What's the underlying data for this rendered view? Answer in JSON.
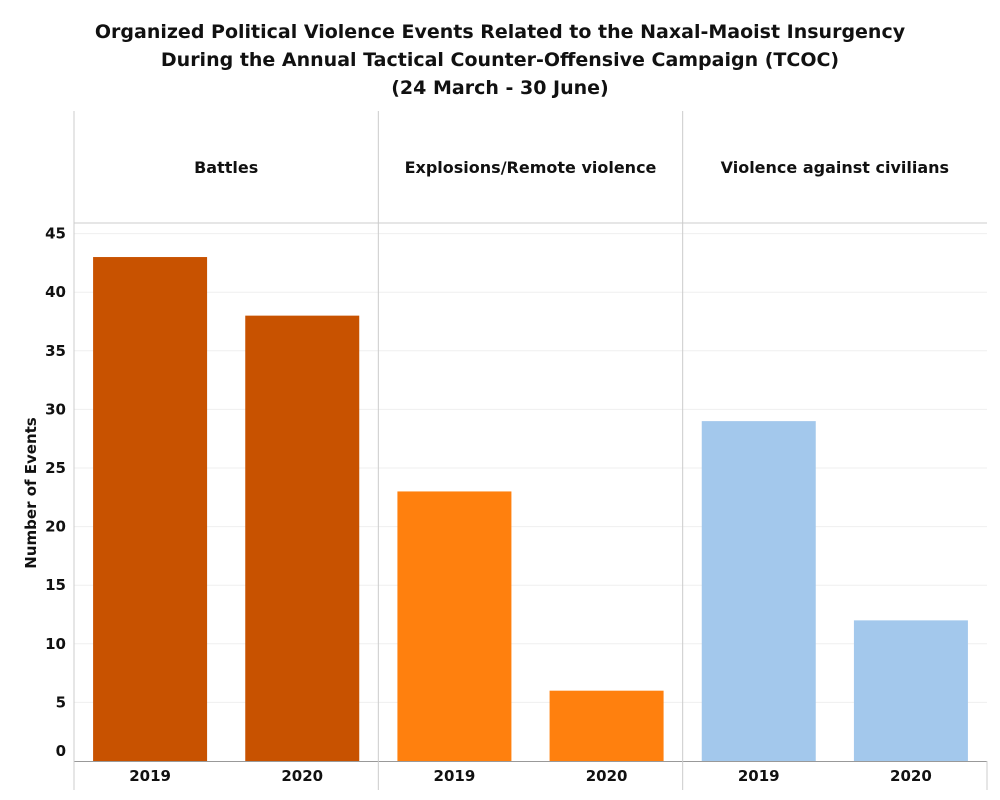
{
  "chart_data": {
    "type": "bar",
    "title": [
      "Organized Political Violence Events Related to the Naxal-Maoist Insurgency",
      "During the Annual Tactical Counter-Offensive Campaign (TCOC)",
      "(24 March - 30 June)"
    ],
    "ylabel": "Number of Events",
    "xlabel": "",
    "ylim": [
      0,
      45
    ],
    "yticks": [
      0,
      5,
      10,
      15,
      20,
      25,
      30,
      35,
      40,
      45
    ],
    "grid": true,
    "panels": [
      {
        "name": "Battles",
        "color": "#C85200",
        "categories": [
          "2019",
          "2020"
        ],
        "values": [
          43,
          38
        ]
      },
      {
        "name": "Explosions/Remote violence",
        "color": "#FF800E",
        "categories": [
          "2019",
          "2020"
        ],
        "values": [
          23,
          6
        ]
      },
      {
        "name": "Violence against civilians",
        "color": "#A3C8EC",
        "categories": [
          "2019",
          "2020"
        ],
        "values": [
          29,
          12
        ]
      }
    ]
  }
}
